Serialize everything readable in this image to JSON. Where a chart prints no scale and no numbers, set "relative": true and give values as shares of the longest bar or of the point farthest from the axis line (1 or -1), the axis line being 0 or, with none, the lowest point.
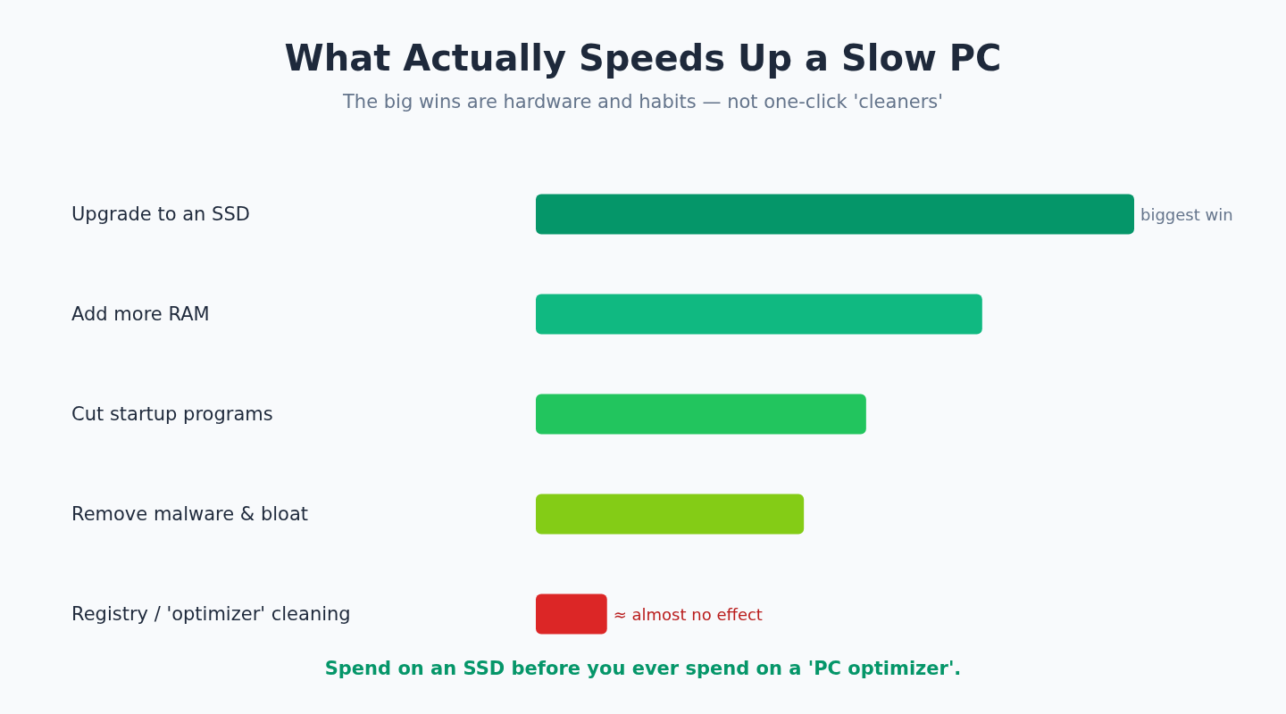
{
  "chart_data": {
    "type": "bar",
    "orientation": "horizontal",
    "relative": true,
    "title": "What Actually Speeds Up a Slow PC",
    "subtitle": "The big wins are hardware and habits — not one-click 'cleaners'",
    "categories": [
      "Upgrade to an SSD",
      "Add more RAM",
      "Cut startup programs",
      "Remove malware & bloat",
      "Registry / 'optimizer' cleaning"
    ],
    "values": [
      1,
      0.746,
      0.552,
      0.448,
      0.119
    ],
    "colors": [
      "#059669",
      "#10b981",
      "#22c55e",
      "#84cc16",
      "#dc2626"
    ],
    "annotations": [
      {
        "text": "biggest win",
        "x": 1,
        "y": "Upgrade to an SSD"
      },
      {
        "text": "≈ almost no effect",
        "x": 0.119,
        "y": "Registry / 'optimizer' cleaning"
      },
      "Spend on an SSD before you ever spend on a 'PC optimizer'."
    ]
  }
}
